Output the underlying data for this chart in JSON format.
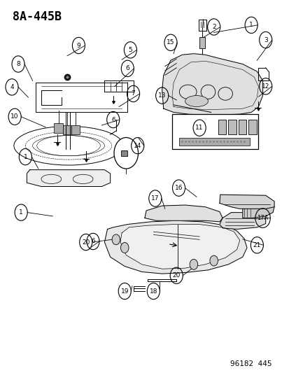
{
  "title": "8A-445B",
  "footer": "96182  445",
  "bg_color": "#ffffff",
  "line_color": "#000000",
  "title_fontsize": 12,
  "footer_fontsize": 7.5,
  "label_fontsize": 6.5
}
